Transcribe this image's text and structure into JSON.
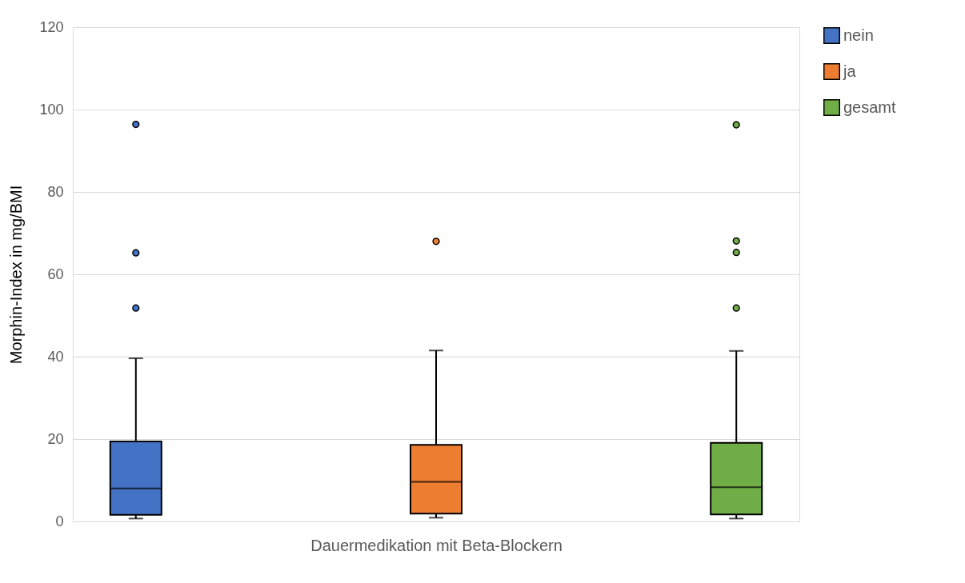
{
  "chart_data": {
    "type": "box",
    "xlabel": "Dauermedikation mit Beta-Blockern",
    "ylabel": "Morphin-Index in mg/BMI",
    "categories": [
      null
    ],
    "series": [
      {
        "name": "nein",
        "color": "#4472c4",
        "boxes": [
          {
            "low": 0.7,
            "q1": 1.6,
            "median": 8.0,
            "q3": 19.4,
            "high": 39.6,
            "outliers": [
              96.4,
              65.2,
              51.8
            ]
          }
        ]
      },
      {
        "name": "ja",
        "color": "#ed7d31",
        "boxes": [
          {
            "low": 0.9,
            "q1": 1.9,
            "median": 9.6,
            "q3": 18.6,
            "high": 41.5,
            "outliers": [
              68.0
            ]
          }
        ]
      },
      {
        "name": "gesamt",
        "color": "#70ad47",
        "boxes": [
          {
            "low": 0.7,
            "q1": 1.7,
            "median": 8.3,
            "q3": 19.1,
            "high": 41.4,
            "outliers": [
              96.3,
              68.1,
              65.3,
              51.8
            ]
          }
        ]
      }
    ],
    "ylim": [
      0,
      120
    ],
    "yticks": [
      0,
      20,
      40,
      60,
      80,
      100,
      120
    ],
    "grid": "y",
    "legend": "right",
    "tick_labels": "y"
  }
}
